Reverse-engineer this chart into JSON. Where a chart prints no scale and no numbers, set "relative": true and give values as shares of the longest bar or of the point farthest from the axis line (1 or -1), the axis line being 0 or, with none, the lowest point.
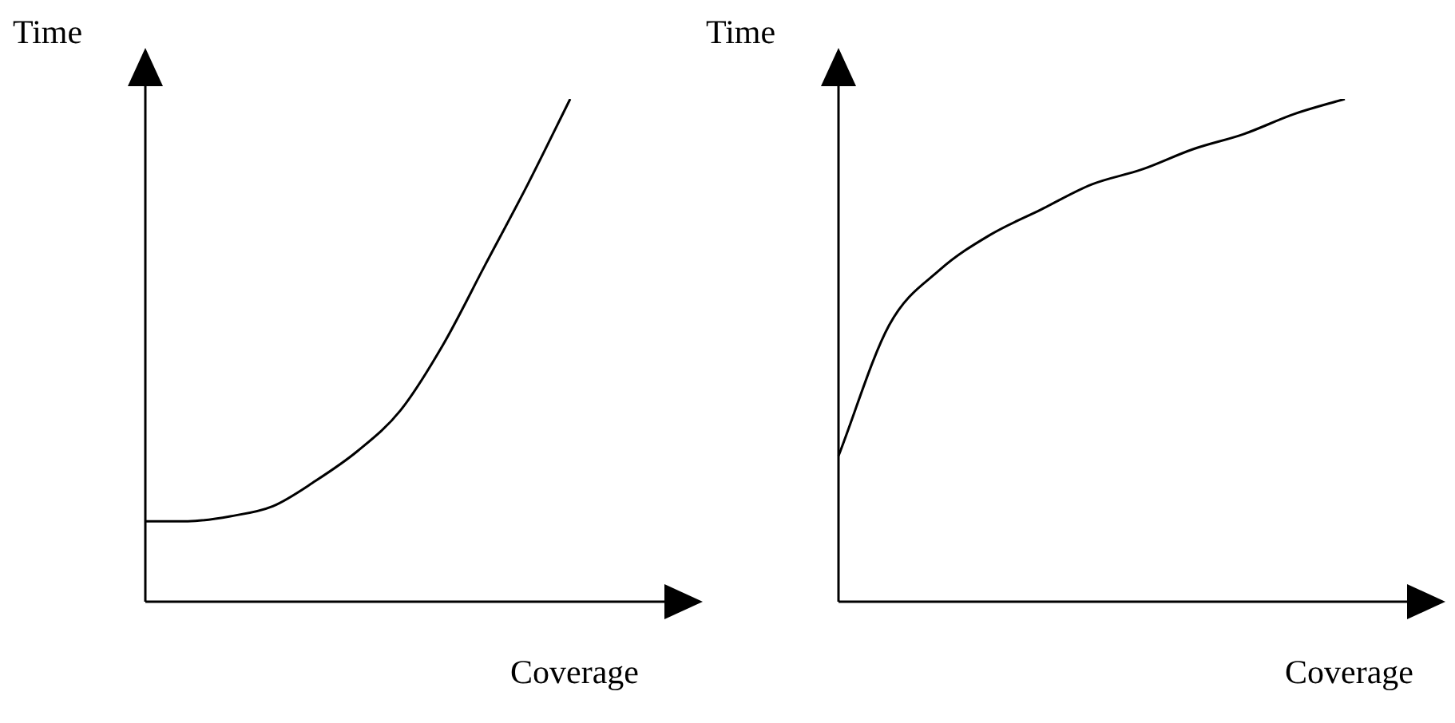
{
  "chart_data": [
    {
      "type": "line",
      "xlabel": "Coverage",
      "ylabel": "Time",
      "relative": true,
      "color": "#000000",
      "categories": [
        null,
        null,
        null,
        null,
        null,
        null,
        null,
        null,
        null,
        null,
        null
      ],
      "values": [
        0.16,
        0.16,
        0.17,
        0.19,
        0.24,
        0.3,
        0.38,
        0.51,
        0.67,
        0.83,
        1
      ]
    },
    {
      "type": "line",
      "xlabel": "Coverage",
      "ylabel": "Time",
      "relative": true,
      "color": "#000000",
      "categories": [
        null,
        null,
        null,
        null,
        null,
        null,
        null,
        null,
        null,
        null,
        null
      ],
      "values": [
        0.29,
        0.55,
        0.66,
        0.73,
        0.78,
        0.83,
        0.86,
        0.9,
        0.93,
        0.97,
        1
      ]
    }
  ]
}
